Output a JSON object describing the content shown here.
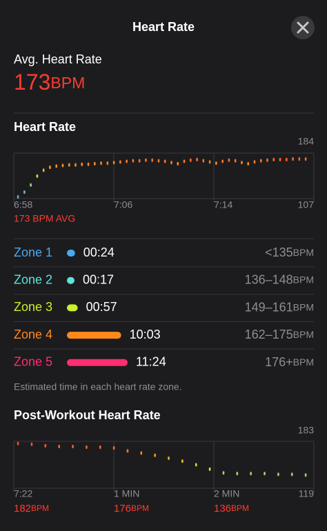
{
  "header": {
    "title": "Heart Rate"
  },
  "average": {
    "label": "Avg. Heart Rate",
    "value": 173,
    "unit": "BPM"
  },
  "heart_rate_chart": {
    "type": "dots",
    "title": "Heart Rate",
    "x_labels": [
      "6:58",
      "7:06",
      "7:14"
    ],
    "ylim": [
      107,
      184
    ],
    "yticks": [
      107,
      184
    ],
    "values": [
      110,
      118,
      130,
      145,
      155,
      160,
      162,
      163,
      164,
      164,
      165,
      165,
      166,
      167,
      167,
      168,
      169,
      170,
      171,
      171,
      172,
      172,
      171,
      170,
      168,
      166,
      170,
      172,
      173,
      171,
      169,
      167,
      170,
      172,
      171,
      168,
      166,
      169,
      171,
      172,
      173,
      173,
      173,
      174,
      174,
      174
    ],
    "avg_label": "173 BPM AVG"
  },
  "zones": [
    {
      "name": "Zone 1",
      "color": "#4aa8f0",
      "duration": "00:24",
      "range": "<135",
      "unit": "BPM"
    },
    {
      "name": "Zone 2",
      "color": "#5fe3dc",
      "duration": "00:17",
      "range": "136–148",
      "unit": "BPM"
    },
    {
      "name": "Zone 3",
      "color": "#c9f02c",
      "duration": "00:57",
      "range": "149–161",
      "unit": "BPM"
    },
    {
      "name": "Zone 4",
      "color": "#ff8a1c",
      "duration": "10:03",
      "range": "162–175",
      "unit": "BPM"
    },
    {
      "name": "Zone 5",
      "color": "#ff2d70",
      "duration": "11:24",
      "range": "176+",
      "unit": "BPM"
    }
  ],
  "zones_note": "Estimated time in each heart rate zone.",
  "post_workout_chart": {
    "type": "dots",
    "title": "Post-Workout Heart Rate",
    "x_labels": [
      "7:22",
      "1 MIN",
      "2 MIN"
    ],
    "ylim": [
      119,
      183
    ],
    "yticks": [
      119,
      183
    ],
    "values": [
      180,
      179,
      177,
      176,
      176,
      175,
      175,
      174,
      170,
      167,
      164,
      160,
      156,
      151,
      145,
      140,
      139,
      139,
      139,
      138,
      138,
      137
    ],
    "summary": [
      {
        "value": 182,
        "unit": "BPM"
      },
      {
        "value": 176,
        "unit": "BPM"
      },
      {
        "value": 136,
        "unit": "BPM"
      }
    ]
  }
}
